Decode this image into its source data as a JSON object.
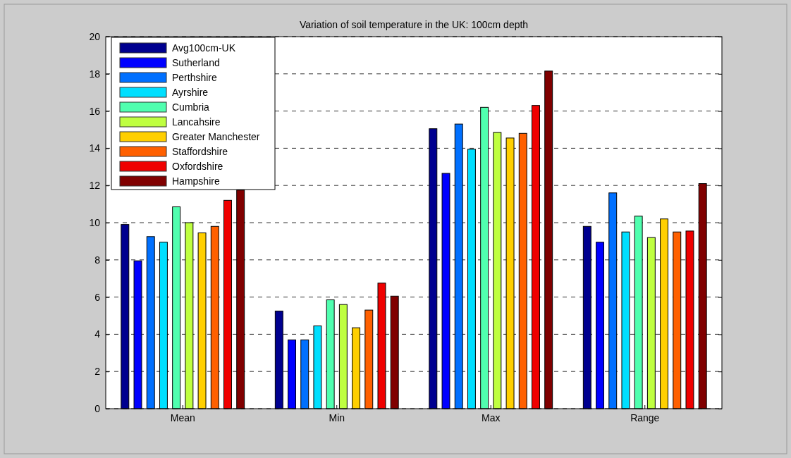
{
  "chart_data": {
    "type": "bar",
    "title": "Variation of soil temperature in the UK: 100cm depth",
    "categories": [
      "Mean",
      "Min",
      "Max",
      "Range"
    ],
    "series": [
      {
        "name": "Avg100cm-UK",
        "color": "#00008f",
        "values": [
          9.9,
          5.25,
          15.05,
          9.8
        ]
      },
      {
        "name": "Sutherland",
        "color": "#0000ff",
        "values": [
          7.95,
          3.7,
          12.65,
          8.95
        ]
      },
      {
        "name": "Perthshire",
        "color": "#0070ff",
        "values": [
          9.25,
          3.7,
          15.3,
          11.6
        ]
      },
      {
        "name": "Ayrshire",
        "color": "#00dfff",
        "values": [
          8.95,
          4.45,
          13.95,
          9.5
        ]
      },
      {
        "name": "Cumbria",
        "color": "#50ffaf",
        "values": [
          10.85,
          5.85,
          16.2,
          10.35
        ]
      },
      {
        "name": "Lancahsire",
        "color": "#bfff40",
        "values": [
          10.0,
          5.6,
          14.85,
          9.2
        ]
      },
      {
        "name": "Greater Manchester",
        "color": "#ffcf00",
        "values": [
          9.45,
          4.35,
          14.55,
          10.2
        ]
      },
      {
        "name": "Staffordshire",
        "color": "#ff6000",
        "values": [
          9.8,
          5.3,
          14.8,
          9.5
        ]
      },
      {
        "name": "Oxfordshire",
        "color": "#ef0000",
        "values": [
          11.2,
          6.75,
          16.3,
          9.55
        ]
      },
      {
        "name": "Hampshire",
        "color": "#800000",
        "values": [
          11.75,
          6.05,
          18.15,
          12.1
        ]
      }
    ],
    "ylim": [
      0,
      20
    ],
    "yticks": [
      0,
      2,
      4,
      6,
      8,
      10,
      12,
      14,
      16,
      18,
      20
    ],
    "grid": "y",
    "legend": "top left"
  }
}
